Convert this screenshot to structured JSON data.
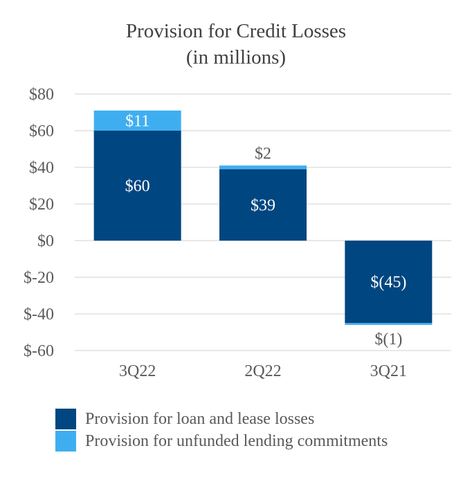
{
  "chart_data": {
    "type": "bar",
    "stacked": true,
    "title": "Provision for Credit Losses",
    "subtitle": "(in millions)",
    "categories": [
      "3Q22",
      "2Q22",
      "3Q21"
    ],
    "series": [
      {
        "name": "Provision for loan and lease losses",
        "color": "#004680",
        "values": [
          60,
          39,
          -45
        ],
        "labels": [
          "$60",
          "$39",
          "$(45)"
        ]
      },
      {
        "name": "Provision for unfunded lending commitments",
        "color": "#3FAEF0",
        "values": [
          11,
          2,
          -1
        ],
        "labels": [
          "$11",
          "$2",
          "$(1)"
        ]
      }
    ],
    "ylim": [
      -60,
      80
    ],
    "yticks": [
      80,
      60,
      40,
      20,
      0,
      -20,
      -40,
      -60
    ],
    "ytick_labels": [
      "$80",
      "$60",
      "$40",
      "$20",
      "$0",
      "$-20",
      "$-40",
      "$-60"
    ],
    "xlabel": "",
    "ylabel": "",
    "grid": true,
    "legend_position": "bottom-left"
  }
}
